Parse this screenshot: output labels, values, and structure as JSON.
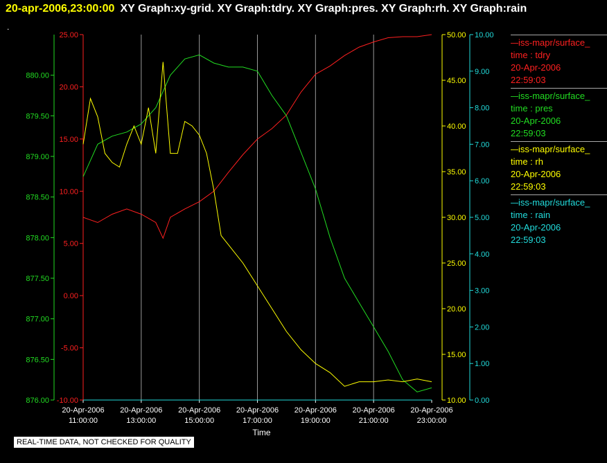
{
  "header": {
    "timestamp": "20-apr-2006,23:00:00",
    "graph_titles": "XY Graph:xy-grid.  XY Graph:tdry.  XY Graph:pres.  XY Graph:rh.  XY Graph:rain"
  },
  "marker": ".",
  "quality_note": "REAL-TIME DATA, NOT CHECKED FOR QUALITY",
  "legend": [
    {
      "source": "—iss-mapr/surface_",
      "field": "time : tdry",
      "date": "20-Apr-2006",
      "time": "22:59:03",
      "color": "#ff2020"
    },
    {
      "source": "—iss-mapr/surface_",
      "field": "time : pres",
      "date": "20-Apr-2006",
      "time": "22:59:03",
      "color": "#22dd22"
    },
    {
      "source": "—iss-mapr/surface_",
      "field": "time : rh",
      "date": "20-Apr-2006",
      "time": "22:59:03",
      "color": "#ffff00"
    },
    {
      "source": "—iss-mapr/surface_",
      "field": "time : rain",
      "date": "20-Apr-2006",
      "time": "22:59:03",
      "color": "#22dddd"
    }
  ],
  "chart_data": {
    "type": "line",
    "xlabel": "Time",
    "x_ticks": [
      {
        "date": "20-Apr-2006",
        "time": "11:00:00"
      },
      {
        "date": "20-Apr-2006",
        "time": "13:00:00"
      },
      {
        "date": "20-Apr-2006",
        "time": "15:00:00"
      },
      {
        "date": "20-Apr-2006",
        "time": "17:00:00"
      },
      {
        "date": "20-Apr-2006",
        "time": "19:00:00"
      },
      {
        "date": "20-Apr-2006",
        "time": "21:00:00"
      },
      {
        "date": "20-Apr-2006",
        "time": "23:00:00"
      }
    ],
    "xlim": [
      "20-Apr-2006 11:00:00",
      "20-Apr-2006 23:00:00"
    ],
    "grid": "vertical",
    "axes": [
      {
        "id": "pres",
        "side": "left-outer",
        "color": "#22dd22",
        "ylim": [
          876.0,
          880.5
        ],
        "ticks": [
          "876.00",
          "876.50",
          "877.00",
          "877.50",
          "878.00",
          "878.50",
          "879.00",
          "879.50",
          "880.00"
        ]
      },
      {
        "id": "tdry",
        "side": "left-inner",
        "color": "#ff2020",
        "ylim": [
          -10.0,
          25.0
        ],
        "ticks": [
          "-10.00",
          "-5.00",
          "0.00",
          "5.00",
          "10.00",
          "15.00",
          "20.00",
          "25.00"
        ]
      },
      {
        "id": "rh",
        "side": "right-inner",
        "color": "#ffff00",
        "ylim": [
          10.0,
          50.0
        ],
        "ticks": [
          "10.00",
          "15.00",
          "20.00",
          "25.00",
          "30.00",
          "35.00",
          "40.00",
          "45.00",
          "50.00"
        ]
      },
      {
        "id": "rain",
        "side": "right-outer",
        "color": "#22dddd",
        "ylim": [
          0.0,
          10.0
        ],
        "ticks": [
          "0.00",
          "1.00",
          "2.00",
          "3.00",
          "4.00",
          "5.00",
          "6.00",
          "7.00",
          "8.00",
          "9.00",
          "10.00"
        ]
      }
    ],
    "series": [
      {
        "name": "time : tdry",
        "axis": "tdry",
        "color": "#ff2020",
        "x": [
          "11:00",
          "11:30",
          "12:00",
          "12:30",
          "13:00",
          "13:30",
          "13:45",
          "14:00",
          "14:30",
          "15:00",
          "15:30",
          "16:00",
          "16:30",
          "17:00",
          "17:30",
          "18:00",
          "18:30",
          "19:00",
          "19:30",
          "20:00",
          "20:30",
          "21:00",
          "21:30",
          "22:00",
          "22:30",
          "23:00"
        ],
        "y": [
          7.5,
          7.0,
          7.8,
          8.3,
          7.8,
          7.0,
          5.5,
          7.5,
          8.3,
          9.0,
          10.0,
          11.8,
          13.5,
          15.0,
          16.0,
          17.3,
          19.5,
          21.2,
          22.0,
          23.0,
          23.8,
          24.3,
          24.7,
          24.8,
          24.8,
          25.0
        ]
      },
      {
        "name": "time : pres",
        "axis": "pres",
        "color": "#22dd22",
        "x": [
          "11:00",
          "11:30",
          "12:00",
          "12:30",
          "13:00",
          "13:30",
          "14:00",
          "14:30",
          "15:00",
          "15:30",
          "16:00",
          "16:30",
          "17:00",
          "17:30",
          "18:00",
          "18:30",
          "19:00",
          "19:30",
          "20:00",
          "20:30",
          "21:00",
          "21:30",
          "22:00",
          "22:30",
          "23:00"
        ],
        "y": [
          878.75,
          879.15,
          879.25,
          879.3,
          879.4,
          879.6,
          880.0,
          880.2,
          880.25,
          880.15,
          880.1,
          880.1,
          880.05,
          879.75,
          879.5,
          879.05,
          878.6,
          878.0,
          877.5,
          877.2,
          876.9,
          876.6,
          876.25,
          876.1,
          876.15
        ]
      },
      {
        "name": "time : rh",
        "axis": "rh",
        "color": "#ffff00",
        "x": [
          "11:00",
          "11:15",
          "11:30",
          "11:45",
          "12:00",
          "12:15",
          "12:30",
          "12:45",
          "13:00",
          "13:15",
          "13:30",
          "13:45",
          "14:00",
          "14:15",
          "14:30",
          "14:45",
          "15:00",
          "15:15",
          "15:30",
          "15:45",
          "16:00",
          "16:30",
          "17:00",
          "17:30",
          "18:00",
          "18:30",
          "19:00",
          "19:30",
          "20:00",
          "20:30",
          "21:00",
          "21:30",
          "22:00",
          "22:30",
          "23:00"
        ],
        "y": [
          38.0,
          43.0,
          41.0,
          37.0,
          36.0,
          35.5,
          38.0,
          40.0,
          38.0,
          42.0,
          37.0,
          47.0,
          37.0,
          37.0,
          40.5,
          40.0,
          39.0,
          37.0,
          33.0,
          28.0,
          27.0,
          25.0,
          22.5,
          20.0,
          17.5,
          15.5,
          14.0,
          13.0,
          11.5,
          12.0,
          12.0,
          12.2,
          12.0,
          12.3,
          12.0
        ]
      },
      {
        "name": "time : rain",
        "axis": "rain",
        "color": "#22dddd",
        "x": [
          "11:00",
          "23:00"
        ],
        "y": [
          0.0,
          0.0
        ]
      }
    ]
  }
}
